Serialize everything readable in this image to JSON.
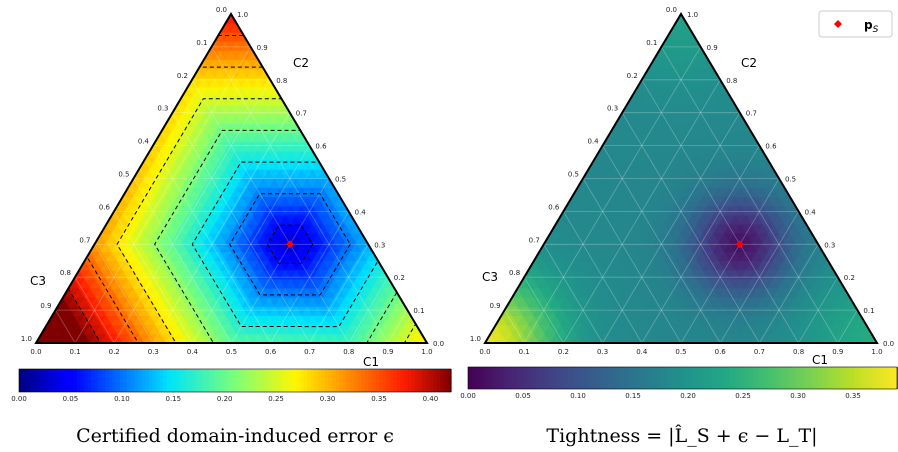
{
  "chart_data": [
    {
      "type": "heatmap",
      "subtype": "ternary",
      "caption": "Certified domain-induced error ϵ",
      "colormap": "jet",
      "colorbar": {
        "range": [
          0,
          0.42
        ],
        "ticks": [
          "0.00",
          "0.05",
          "0.10",
          "0.15",
          "0.20",
          "0.25",
          "0.30",
          "0.35",
          "0.40"
        ]
      },
      "axes": {
        "corners": {
          "top": "C2",
          "left": "C3",
          "right": "C1"
        },
        "ticks": [
          "0.0",
          "0.1",
          "0.2",
          "0.3",
          "0.4",
          "0.5",
          "0.6",
          "0.7",
          "0.8",
          "0.9",
          "1.0"
        ]
      },
      "field": {
        "minimum_at": {
          "C1": 0.5,
          "C2": 0.3,
          "C3": 0.2
        },
        "min_value": 0.02,
        "max_value": 0.42,
        "max_at": "C3"
      },
      "contour_levels": [
        0.05,
        0.1,
        0.15,
        0.2,
        0.25,
        0.3,
        0.35
      ],
      "grid": true,
      "point": {
        "C1": 0.5,
        "C2": 0.3,
        "C3": 0.2,
        "color": "#ff0000"
      }
    },
    {
      "type": "heatmap",
      "subtype": "ternary",
      "caption": "Tightness = |L̂_S + ϵ − L_T|",
      "colormap": "viridis",
      "colorbar": {
        "range": [
          0,
          0.39
        ],
        "ticks": [
          "0.00",
          "0.05",
          "0.10",
          "0.15",
          "0.20",
          "0.25",
          "0.30",
          "0.35"
        ]
      },
      "axes": {
        "corners": {
          "top": "C2",
          "left": "C3",
          "right": "C1"
        },
        "ticks": [
          "0.0",
          "0.1",
          "0.2",
          "0.3",
          "0.4",
          "0.5",
          "0.6",
          "0.7",
          "0.8",
          "0.9",
          "1.0"
        ]
      },
      "field": {
        "minimum_at": {
          "C1": 0.5,
          "C2": 0.3,
          "C3": 0.2
        },
        "min_value": 0.02,
        "background_value": 0.18,
        "high_values": [
          {
            "C1": 0.0,
            "C2": 0.0,
            "C3": 1.0,
            "value": 0.38
          },
          {
            "C1": 1.0,
            "C2": 0.0,
            "C3": 0.0,
            "value": 0.24
          },
          {
            "C1": 0.0,
            "C2": 1.0,
            "C3": 0.0,
            "value": 0.22
          }
        ]
      },
      "grid": true,
      "point": {
        "C1": 0.5,
        "C2": 0.3,
        "C3": 0.2,
        "color": "#ff0000"
      },
      "legend": {
        "label": "p",
        "subscript": "S",
        "position": "top-right"
      }
    }
  ]
}
